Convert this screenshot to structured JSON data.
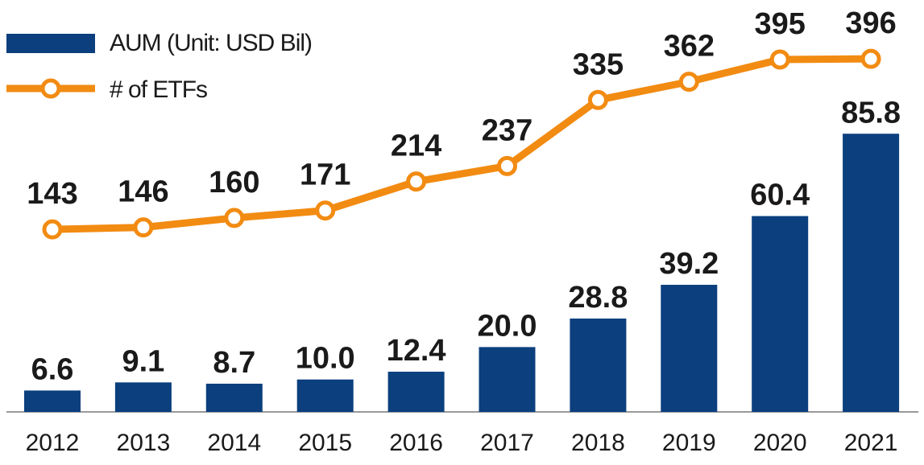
{
  "chart_data": {
    "type": "combo",
    "categories": [
      "2012",
      "2013",
      "2014",
      "2015",
      "2016",
      "2017",
      "2018",
      "2019",
      "2020",
      "2021"
    ],
    "series": [
      {
        "name": "AUM (Unit: USD Bil)",
        "type": "bar",
        "color": "#0b3f7e",
        "values": [
          6.6,
          9.1,
          8.7,
          10.0,
          12.4,
          20.0,
          28.8,
          39.2,
          60.4,
          85.8
        ],
        "value_labels": [
          "6.6",
          "9.1",
          "8.7",
          "10.0",
          "12.4",
          "20.0",
          "28.8",
          "39.2",
          "60.4",
          "85.8"
        ]
      },
      {
        "name": "# of ETFs",
        "type": "line",
        "color": "#f28b12",
        "values": [
          143,
          146,
          160,
          171,
          214,
          237,
          335,
          362,
          395,
          396
        ]
      }
    ]
  }
}
